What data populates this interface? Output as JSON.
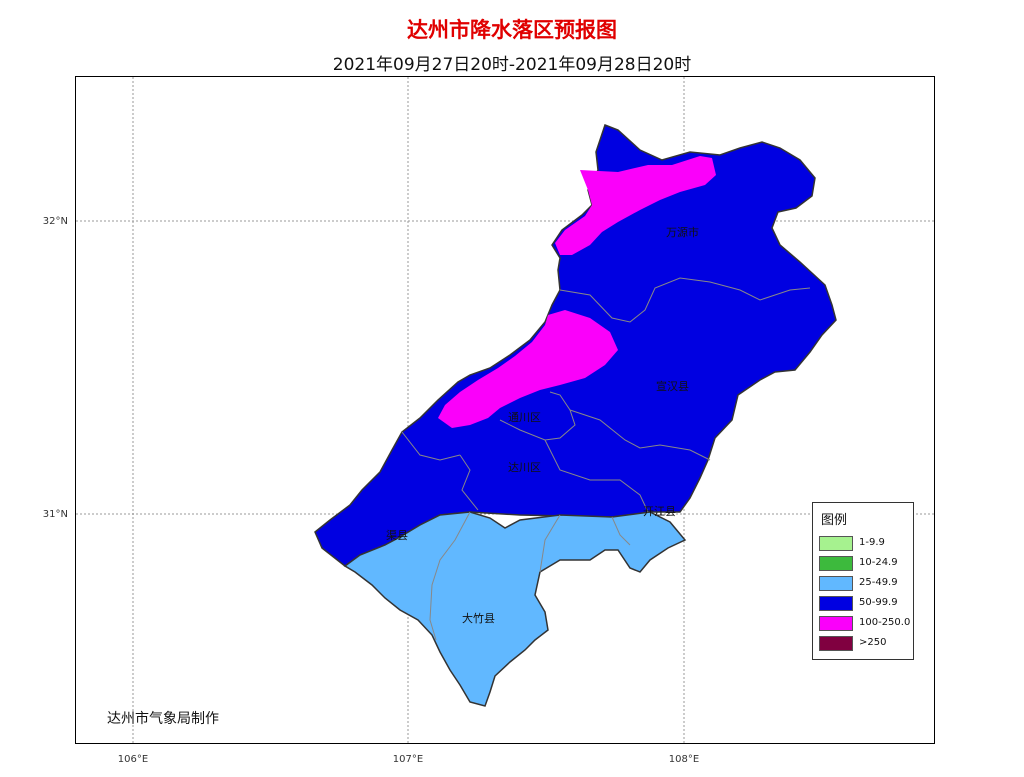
{
  "title": "达州市降水落区预报图",
  "subtitle": "2021年09月27日20时-2021年09月28日20时",
  "producer": "达州市气象局制作",
  "lat_labels": [
    "32°N",
    "31°N"
  ],
  "lon_labels": [
    "106°E",
    "107°E",
    "108°E"
  ],
  "legend": {
    "title": "图例",
    "items": [
      {
        "label": "1-9.9",
        "color": "#a6f28f"
      },
      {
        "label": "10-24.9",
        "color": "#3dba3d"
      },
      {
        "label": "25-49.9",
        "color": "#61b8ff"
      },
      {
        "label": "50-99.9",
        "color": "#0000e1"
      },
      {
        "label": "100-250.0",
        "color": "#fa00fa"
      },
      {
        "label": ">250",
        "color": "#800040"
      }
    ]
  },
  "county_labels": {
    "wanyuan": "万源市",
    "xuanhan": "宣汉县",
    "tongchuan": "通川区",
    "dachuan": "达川区",
    "qu": "渠县",
    "dazhu": "大竹县",
    "kaijiang": "开江县"
  }
}
